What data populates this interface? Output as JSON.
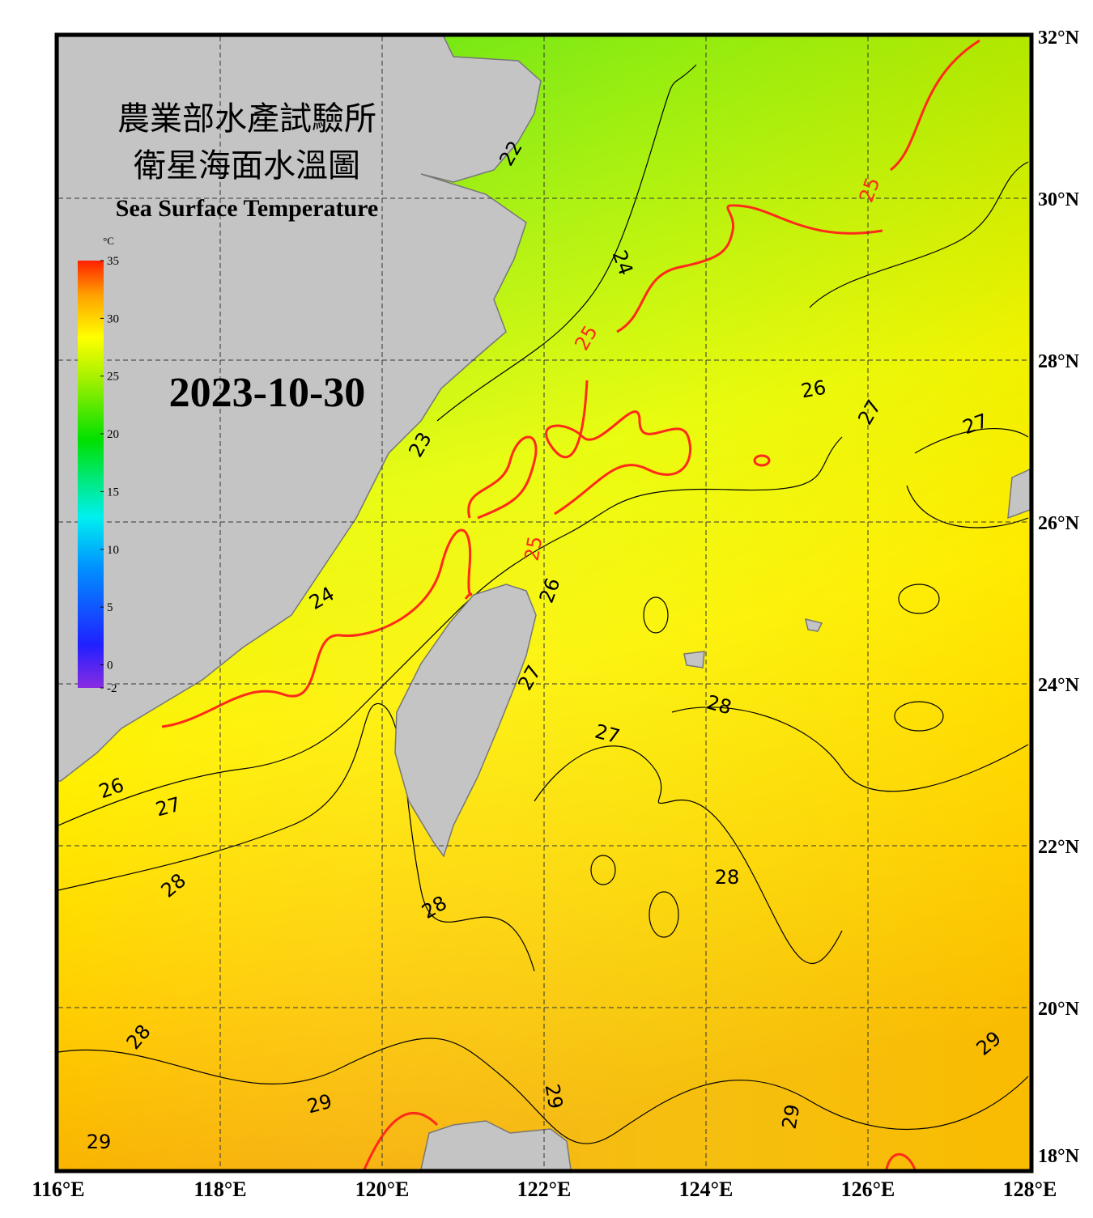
{
  "header": {
    "title_zh_1": "農業部水產試驗所",
    "title_zh_2": "衛星海面水溫圖",
    "title_en": "Sea Surface Temperature",
    "date": "2023-10-30"
  },
  "colorbar": {
    "unit": "°C",
    "range": [
      -2,
      35
    ],
    "ticks": [
      35,
      30,
      25,
      20,
      15,
      10,
      5,
      0,
      -2
    ]
  },
  "map": {
    "lon_range": [
      116,
      128
    ],
    "lat_range": [
      18,
      32
    ],
    "lon_ticks": [
      {
        "value": 116,
        "label": "116°E"
      },
      {
        "value": 118,
        "label": "118°E"
      },
      {
        "value": 120,
        "label": "120°E"
      },
      {
        "value": 122,
        "label": "122°E"
      },
      {
        "value": 124,
        "label": "124°E"
      },
      {
        "value": 126,
        "label": "126°E"
      },
      {
        "value": 128,
        "label": "128°E"
      }
    ],
    "lat_ticks": [
      {
        "value": 32,
        "label": "32°N"
      },
      {
        "value": 30,
        "label": "30°N"
      },
      {
        "value": 28,
        "label": "28°N"
      },
      {
        "value": 26,
        "label": "26°N"
      },
      {
        "value": 24,
        "label": "24°N"
      },
      {
        "value": 22,
        "label": "22°N"
      },
      {
        "value": 20,
        "label": "20°N"
      },
      {
        "value": 18,
        "label": "18°N"
      }
    ],
    "highlight_isotherm": 25,
    "highlight_color": "#ff2a1a",
    "contour_labels": [
      22,
      24,
      25,
      25,
      26,
      27,
      27,
      23,
      25,
      26,
      24,
      27,
      28,
      27,
      26,
      27,
      28,
      28,
      28,
      28,
      29,
      29,
      29,
      29,
      29
    ]
  }
}
